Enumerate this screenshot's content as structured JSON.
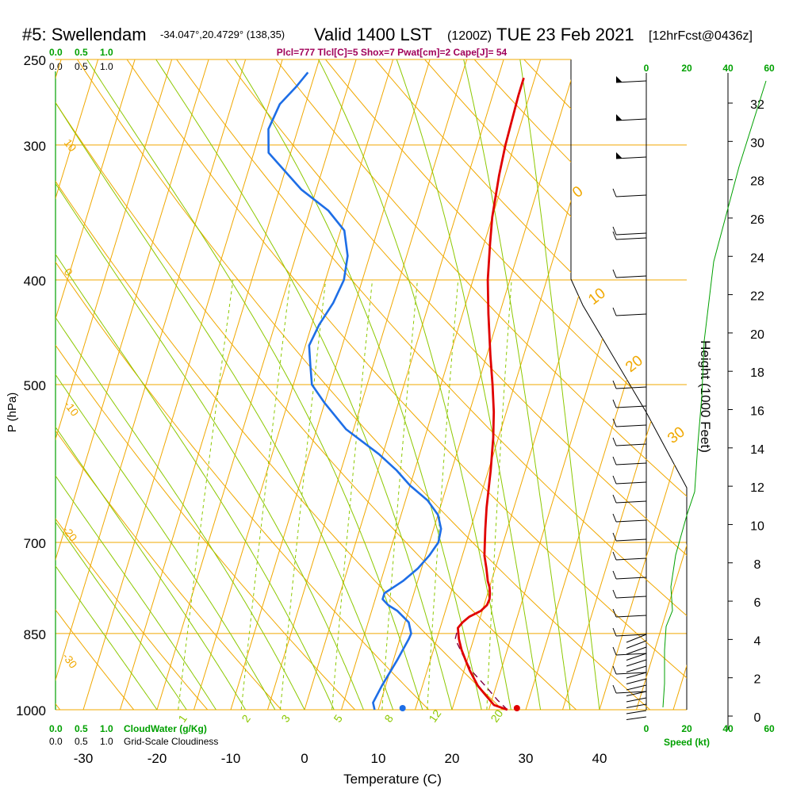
{
  "header": {
    "station": "#5: Swellendam",
    "coords": "-34.047°,20.4729° (138,35)",
    "valid": "Valid 1400 LST",
    "zulu": "(1200Z)",
    "date": "TUE 23 Feb 2021",
    "forecast": "[12hrFcst@0436z]",
    "indices": "Plcl=777 Tlcl[C]=5 Shox=7 Pwat[cm]=2 Cape[J]= 54"
  },
  "colors": {
    "isotherm": "#f0a800",
    "dry_adiabat": "#f0a800",
    "moist_adiabat": "#8cc800",
    "mixing_ratio": "#8cc800",
    "temperature": "#e00000",
    "dewpoint": "#1e6ee6",
    "parcel": "#800040",
    "indices_text": "#a0005a",
    "green_text": "#00a000",
    "height_line": "#00a000"
  },
  "chart_data": {
    "type": "line",
    "title": "#5: Swellendam",
    "xlabel": "Temperature (C)",
    "ylabel": "P (hPa)",
    "right_label": "Height (1000 Feet)",
    "x_ticks": [
      -30,
      -20,
      -10,
      0,
      10,
      20,
      30,
      40
    ],
    "pressure_ticks": [
      250,
      300,
      400,
      500,
      700,
      850,
      1000
    ],
    "height_ticks": [
      0,
      2,
      4,
      6,
      8,
      10,
      12,
      14,
      16,
      18,
      20,
      22,
      24,
      26,
      28,
      30,
      32
    ],
    "speed_label": "Speed (kt)",
    "speed_ticks": [
      "0",
      "20",
      "40",
      "60"
    ],
    "cloud_axis_ticks": [
      "0.0",
      "0.5",
      "1.0"
    ],
    "cloudwater_label": "CloudWater (g/Kg)",
    "cloudiness_label": "Grid-Scale Cloudiness",
    "isotherm_labels": [
      "10",
      "0",
      "-10",
      "-20",
      "-30"
    ],
    "dry_adiabat_labels": [
      "0",
      "10",
      "20",
      "30"
    ],
    "mixing_ratio_labels": [
      "1",
      "2",
      "3",
      "5",
      "8",
      "12",
      "20"
    ],
    "ylim": [
      250,
      1000
    ],
    "xlim": [
      -33,
      45
    ],
    "series": [
      {
        "points": [
          [
            1000,
            27.5
          ],
          [
            990,
            25.5
          ],
          [
            970,
            24.0
          ],
          [
            950,
            22.5
          ],
          [
            920,
            20.8
          ],
          [
            900,
            19.8
          ],
          [
            880,
            18.8
          ],
          [
            860,
            18.0
          ],
          [
            840,
            17.4
          ],
          [
            830,
            17.8
          ],
          [
            820,
            18.5
          ],
          [
            810,
            19.8
          ],
          [
            800,
            20.4
          ],
          [
            790,
            20.5
          ],
          [
            780,
            20.3
          ],
          [
            770,
            20.0
          ],
          [
            760,
            19.5
          ],
          [
            740,
            18.8
          ],
          [
            720,
            18.0
          ],
          [
            700,
            17.5
          ],
          [
            680,
            17.0
          ],
          [
            650,
            16.3
          ],
          [
            600,
            15.3
          ],
          [
            560,
            14.3
          ],
          [
            530,
            13.3
          ],
          [
            500,
            12.0
          ],
          [
            470,
            10.5
          ],
          [
            430,
            8.5
          ],
          [
            400,
            7.0
          ],
          [
            370,
            5.8
          ],
          [
            350,
            5.0
          ],
          [
            320,
            4.2
          ],
          [
            300,
            3.8
          ],
          [
            270,
            3.5
          ],
          [
            260,
            3.5
          ]
        ]
      },
      {
        "points": [
          [
            1000,
            9.5
          ],
          [
            985,
            9.0
          ],
          [
            950,
            9.5
          ],
          [
            900,
            10.5
          ],
          [
            860,
            11.2
          ],
          [
            850,
            11.3
          ],
          [
            830,
            10.5
          ],
          [
            820,
            9.5
          ],
          [
            810,
            8.5
          ],
          [
            800,
            7.0
          ],
          [
            790,
            6.0
          ],
          [
            780,
            6.0
          ],
          [
            770,
            7.0
          ],
          [
            760,
            8.0
          ],
          [
            740,
            9.5
          ],
          [
            720,
            10.5
          ],
          [
            700,
            11.2
          ],
          [
            680,
            11.0
          ],
          [
            660,
            10.0
          ],
          [
            640,
            8.0
          ],
          [
            620,
            5.0
          ],
          [
            600,
            2.5
          ],
          [
            580,
            -0.5
          ],
          [
            550,
            -6.0
          ],
          [
            520,
            -10.0
          ],
          [
            500,
            -12.5
          ],
          [
            480,
            -13.5
          ],
          [
            460,
            -14.5
          ],
          [
            440,
            -14.0
          ],
          [
            420,
            -13.0
          ],
          [
            400,
            -12.5
          ],
          [
            380,
            -13.0
          ],
          [
            360,
            -14.5
          ],
          [
            345,
            -17.5
          ],
          [
            330,
            -22.0
          ],
          [
            305,
            -28.0
          ],
          [
            290,
            -29.0
          ],
          [
            275,
            -28.5
          ],
          [
            265,
            -27.0
          ],
          [
            257,
            -26.0
          ]
        ]
      },
      {
        "points": [
          [
            1000,
            27.5
          ],
          [
            980,
            25.8
          ],
          [
            950,
            23.5
          ],
          [
            920,
            21.0
          ],
          [
            890,
            19.2
          ],
          [
            860,
            17.5
          ],
          [
            840,
            17.4
          ]
        ]
      }
    ],
    "surface": {
      "pressure": 1000,
      "temperature": 28.8,
      "dewpoint": 13.3
    }
  }
}
